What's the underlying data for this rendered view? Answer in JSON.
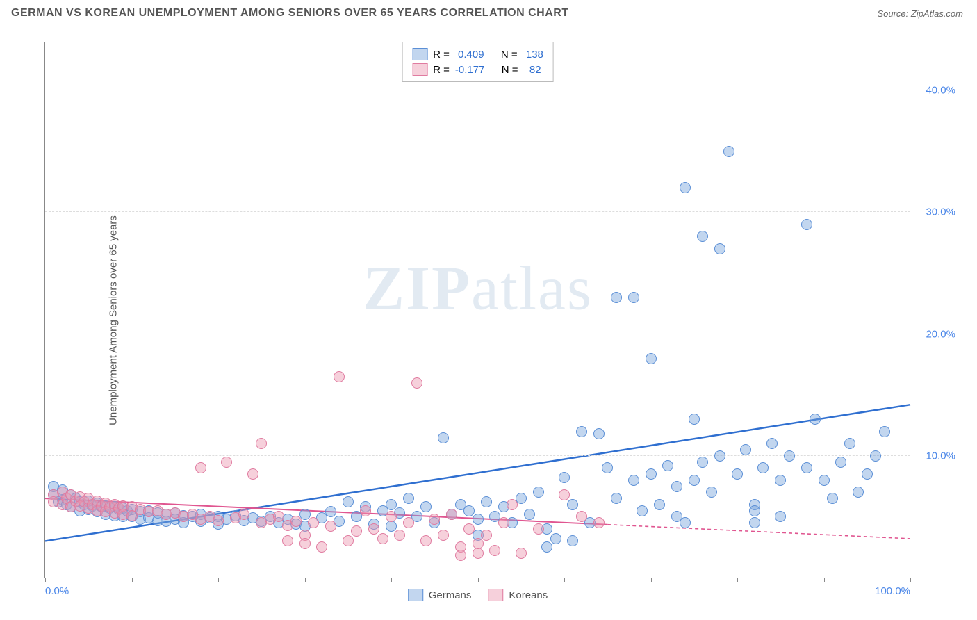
{
  "title": "GERMAN VS KOREAN UNEMPLOYMENT AMONG SENIORS OVER 65 YEARS CORRELATION CHART",
  "source_label": "Source: ",
  "source_name": "ZipAtlas.com",
  "y_axis_label": "Unemployment Among Seniors over 65 years",
  "watermark_bold": "ZIP",
  "watermark_rest": "atlas",
  "chart": {
    "type": "scatter",
    "xlim": [
      0,
      100
    ],
    "ylim": [
      0,
      44
    ],
    "x_tick_positions": [
      0,
      10,
      20,
      30,
      40,
      50,
      60,
      70,
      80,
      90,
      100
    ],
    "x_tick_labels": {
      "0": "0.0%",
      "100": "100.0%"
    },
    "x_tick_color": "#4a86e8",
    "y_ticks": [
      10,
      20,
      30,
      40
    ],
    "y_tick_labels": [
      "10.0%",
      "20.0%",
      "30.0%",
      "40.0%"
    ],
    "y_tick_color": "#4a86e8",
    "grid_color": "#dddddd",
    "series": [
      {
        "name": "Germans",
        "color_fill": "rgba(120,165,220,0.45)",
        "color_stroke": "#5b8fd6",
        "marker_radius": 8,
        "trend": {
          "y_at_x0": 3.0,
          "y_at_x100": 14.2,
          "solid_until_x": 100,
          "color": "#2f6fd0",
          "width": 2.5
        },
        "stats": {
          "R": "0.409",
          "N": "138"
        },
        "points": [
          [
            1,
            7.5
          ],
          [
            1,
            6.8
          ],
          [
            1.5,
            6.2
          ],
          [
            2,
            7.2
          ],
          [
            2,
            6.4
          ],
          [
            2.5,
            6.0
          ],
          [
            3,
            6.8
          ],
          [
            3,
            5.8
          ],
          [
            3.5,
            6.5
          ],
          [
            4,
            6.2
          ],
          [
            4,
            5.5
          ],
          [
            4.5,
            6.0
          ],
          [
            5,
            6.3
          ],
          [
            5,
            5.6
          ],
          [
            5.5,
            5.9
          ],
          [
            6,
            6.1
          ],
          [
            6,
            5.4
          ],
          [
            6.5,
            5.8
          ],
          [
            7,
            5.9
          ],
          [
            7,
            5.2
          ],
          [
            7.5,
            5.7
          ],
          [
            8,
            5.8
          ],
          [
            8,
            5.1
          ],
          [
            8.5,
            5.6
          ],
          [
            9,
            5.7
          ],
          [
            9,
            5.0
          ],
          [
            9.5,
            5.5
          ],
          [
            10,
            5.6
          ],
          [
            10,
            5.0
          ],
          [
            11,
            5.4
          ],
          [
            11,
            4.8
          ],
          [
            12,
            5.5
          ],
          [
            12,
            4.9
          ],
          [
            13,
            5.3
          ],
          [
            13,
            4.7
          ],
          [
            14,
            5.2
          ],
          [
            14,
            4.6
          ],
          [
            15,
            5.3
          ],
          [
            15,
            4.8
          ],
          [
            16,
            5.1
          ],
          [
            16,
            4.5
          ],
          [
            17,
            5.0
          ],
          [
            18,
            5.2
          ],
          [
            18,
            4.6
          ],
          [
            19,
            4.9
          ],
          [
            20,
            5.0
          ],
          [
            20,
            4.4
          ],
          [
            21,
            4.8
          ],
          [
            22,
            5.1
          ],
          [
            23,
            4.7
          ],
          [
            24,
            4.9
          ],
          [
            25,
            4.6
          ],
          [
            26,
            5.0
          ],
          [
            27,
            4.5
          ],
          [
            28,
            4.8
          ],
          [
            29,
            4.4
          ],
          [
            30,
            5.2
          ],
          [
            30,
            4.2
          ],
          [
            32,
            4.9
          ],
          [
            33,
            5.4
          ],
          [
            34,
            4.6
          ],
          [
            35,
            6.2
          ],
          [
            36,
            5.0
          ],
          [
            37,
            5.8
          ],
          [
            38,
            4.4
          ],
          [
            39,
            5.5
          ],
          [
            40,
            6.0
          ],
          [
            40,
            4.2
          ],
          [
            41,
            5.3
          ],
          [
            42,
            6.5
          ],
          [
            43,
            5.0
          ],
          [
            44,
            5.8
          ],
          [
            45,
            4.5
          ],
          [
            46,
            11.5
          ],
          [
            47,
            5.2
          ],
          [
            48,
            6.0
          ],
          [
            49,
            5.5
          ],
          [
            50,
            4.8
          ],
          [
            51,
            6.2
          ],
          [
            52,
            5.0
          ],
          [
            53,
            5.8
          ],
          [
            54,
            4.5
          ],
          [
            55,
            6.5
          ],
          [
            56,
            5.2
          ],
          [
            57,
            7.0
          ],
          [
            58,
            4.0
          ],
          [
            59,
            3.2
          ],
          [
            60,
            8.2
          ],
          [
            61,
            6.0
          ],
          [
            62,
            12.0
          ],
          [
            63,
            4.5
          ],
          [
            64,
            11.8
          ],
          [
            65,
            9.0
          ],
          [
            66,
            23.0
          ],
          [
            66,
            6.5
          ],
          [
            68,
            23.0
          ],
          [
            68,
            8.0
          ],
          [
            69,
            5.5
          ],
          [
            70,
            18.0
          ],
          [
            70,
            8.5
          ],
          [
            71,
            6.0
          ],
          [
            72,
            9.2
          ],
          [
            73,
            7.5
          ],
          [
            74,
            32.0
          ],
          [
            74,
            4.5
          ],
          [
            75,
            13.0
          ],
          [
            75,
            8.0
          ],
          [
            76,
            28.0
          ],
          [
            76,
            9.5
          ],
          [
            78,
            10.0
          ],
          [
            78,
            27.0
          ],
          [
            79,
            35.0
          ],
          [
            80,
            8.5
          ],
          [
            81,
            10.5
          ],
          [
            82,
            6.0
          ],
          [
            82,
            4.5
          ],
          [
            83,
            9.0
          ],
          [
            84,
            11.0
          ],
          [
            85,
            5.0
          ],
          [
            86,
            10.0
          ],
          [
            88,
            29.0
          ],
          [
            89,
            13.0
          ],
          [
            90,
            8.0
          ],
          [
            91,
            6.5
          ],
          [
            92,
            9.5
          ],
          [
            93,
            11.0
          ],
          [
            94,
            7.0
          ],
          [
            95,
            8.5
          ],
          [
            96,
            10.0
          ],
          [
            97,
            12.0
          ],
          [
            82,
            5.5
          ],
          [
            85,
            8.0
          ],
          [
            88,
            9.0
          ],
          [
            73,
            5.0
          ],
          [
            77,
            7.0
          ],
          [
            61,
            3.0
          ],
          [
            58,
            2.5
          ],
          [
            50,
            3.5
          ]
        ]
      },
      {
        "name": "Koreans",
        "color_fill": "rgba(235,150,175,0.45)",
        "color_stroke": "#e07ba0",
        "marker_radius": 8,
        "trend": {
          "y_at_x0": 6.5,
          "y_at_x100": 3.2,
          "solid_until_x": 65,
          "color": "#e05590",
          "width": 2
        },
        "stats": {
          "R": "-0.177",
          "N": "82"
        },
        "points": [
          [
            1,
            6.8
          ],
          [
            1,
            6.2
          ],
          [
            2,
            7.0
          ],
          [
            2,
            6.0
          ],
          [
            2.5,
            6.5
          ],
          [
            3,
            6.8
          ],
          [
            3,
            5.8
          ],
          [
            3.5,
            6.3
          ],
          [
            4,
            6.6
          ],
          [
            4,
            5.9
          ],
          [
            4.5,
            6.2
          ],
          [
            5,
            6.5
          ],
          [
            5,
            5.7
          ],
          [
            5.5,
            6.0
          ],
          [
            6,
            6.3
          ],
          [
            6,
            5.5
          ],
          [
            6.5,
            5.9
          ],
          [
            7,
            6.1
          ],
          [
            7,
            5.4
          ],
          [
            7.5,
            5.8
          ],
          [
            8,
            6.0
          ],
          [
            8,
            5.3
          ],
          [
            8.5,
            5.7
          ],
          [
            9,
            5.9
          ],
          [
            9,
            5.2
          ],
          [
            10,
            5.8
          ],
          [
            10,
            5.1
          ],
          [
            11,
            5.6
          ],
          [
            12,
            5.4
          ],
          [
            13,
            5.5
          ],
          [
            14,
            5.2
          ],
          [
            15,
            5.3
          ],
          [
            16,
            5.0
          ],
          [
            17,
            5.2
          ],
          [
            18,
            4.8
          ],
          [
            18,
            9.0
          ],
          [
            19,
            5.0
          ],
          [
            20,
            4.7
          ],
          [
            21,
            9.5
          ],
          [
            22,
            4.9
          ],
          [
            23,
            5.2
          ],
          [
            24,
            8.5
          ],
          [
            25,
            4.5
          ],
          [
            25,
            11.0
          ],
          [
            26,
            4.8
          ],
          [
            27,
            5.0
          ],
          [
            28,
            4.3
          ],
          [
            28,
            3.0
          ],
          [
            29,
            4.6
          ],
          [
            30,
            3.5
          ],
          [
            30,
            2.8
          ],
          [
            31,
            4.5
          ],
          [
            32,
            2.5
          ],
          [
            33,
            4.2
          ],
          [
            34,
            16.5
          ],
          [
            35,
            3.0
          ],
          [
            36,
            3.8
          ],
          [
            37,
            5.5
          ],
          [
            38,
            4.0
          ],
          [
            39,
            3.2
          ],
          [
            40,
            5.0
          ],
          [
            41,
            3.5
          ],
          [
            42,
            4.5
          ],
          [
            43,
            16.0
          ],
          [
            44,
            3.0
          ],
          [
            45,
            4.8
          ],
          [
            46,
            3.5
          ],
          [
            47,
            5.2
          ],
          [
            48,
            2.5
          ],
          [
            49,
            4.0
          ],
          [
            50,
            2.0
          ],
          [
            51,
            3.5
          ],
          [
            52,
            2.2
          ],
          [
            53,
            4.5
          ],
          [
            54,
            6.0
          ],
          [
            55,
            2.0
          ],
          [
            57,
            4.0
          ],
          [
            60,
            6.8
          ],
          [
            62,
            5.0
          ],
          [
            64,
            4.5
          ],
          [
            48,
            1.8
          ],
          [
            50,
            2.8
          ]
        ]
      }
    ]
  },
  "stats_labels": {
    "R": "R =",
    "N": "N ="
  },
  "legend": {
    "germans": "Germans",
    "koreans": "Koreans"
  }
}
